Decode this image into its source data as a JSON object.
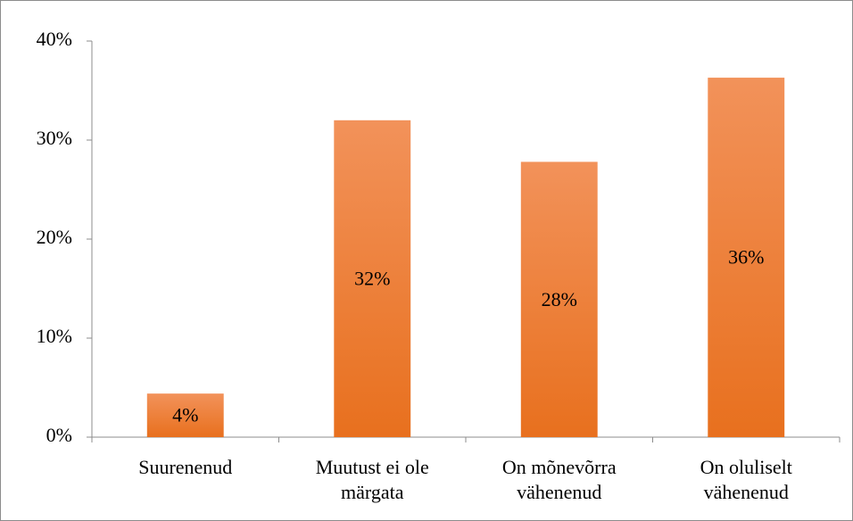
{
  "chart_data": {
    "type": "bar",
    "categories": [
      "Suurenenud",
      "Muutust ei ole märgata",
      "On mõnevõrra vähenenud",
      "On oluliselt vähenenud"
    ],
    "values": [
      4.4,
      32.0,
      27.8,
      36.3
    ],
    "value_labels": [
      "4%",
      "32%",
      "28%",
      "36%"
    ],
    "color": "#ec7a2c",
    "ylim": [
      0,
      40
    ],
    "yticks": [
      {
        "value": 0,
        "label": "0%"
      },
      {
        "value": 10,
        "label": "10%"
      },
      {
        "value": 20,
        "label": "20%"
      },
      {
        "value": 30,
        "label": "30%"
      },
      {
        "value": 40,
        "label": "40%"
      }
    ],
    "grid": false
  }
}
